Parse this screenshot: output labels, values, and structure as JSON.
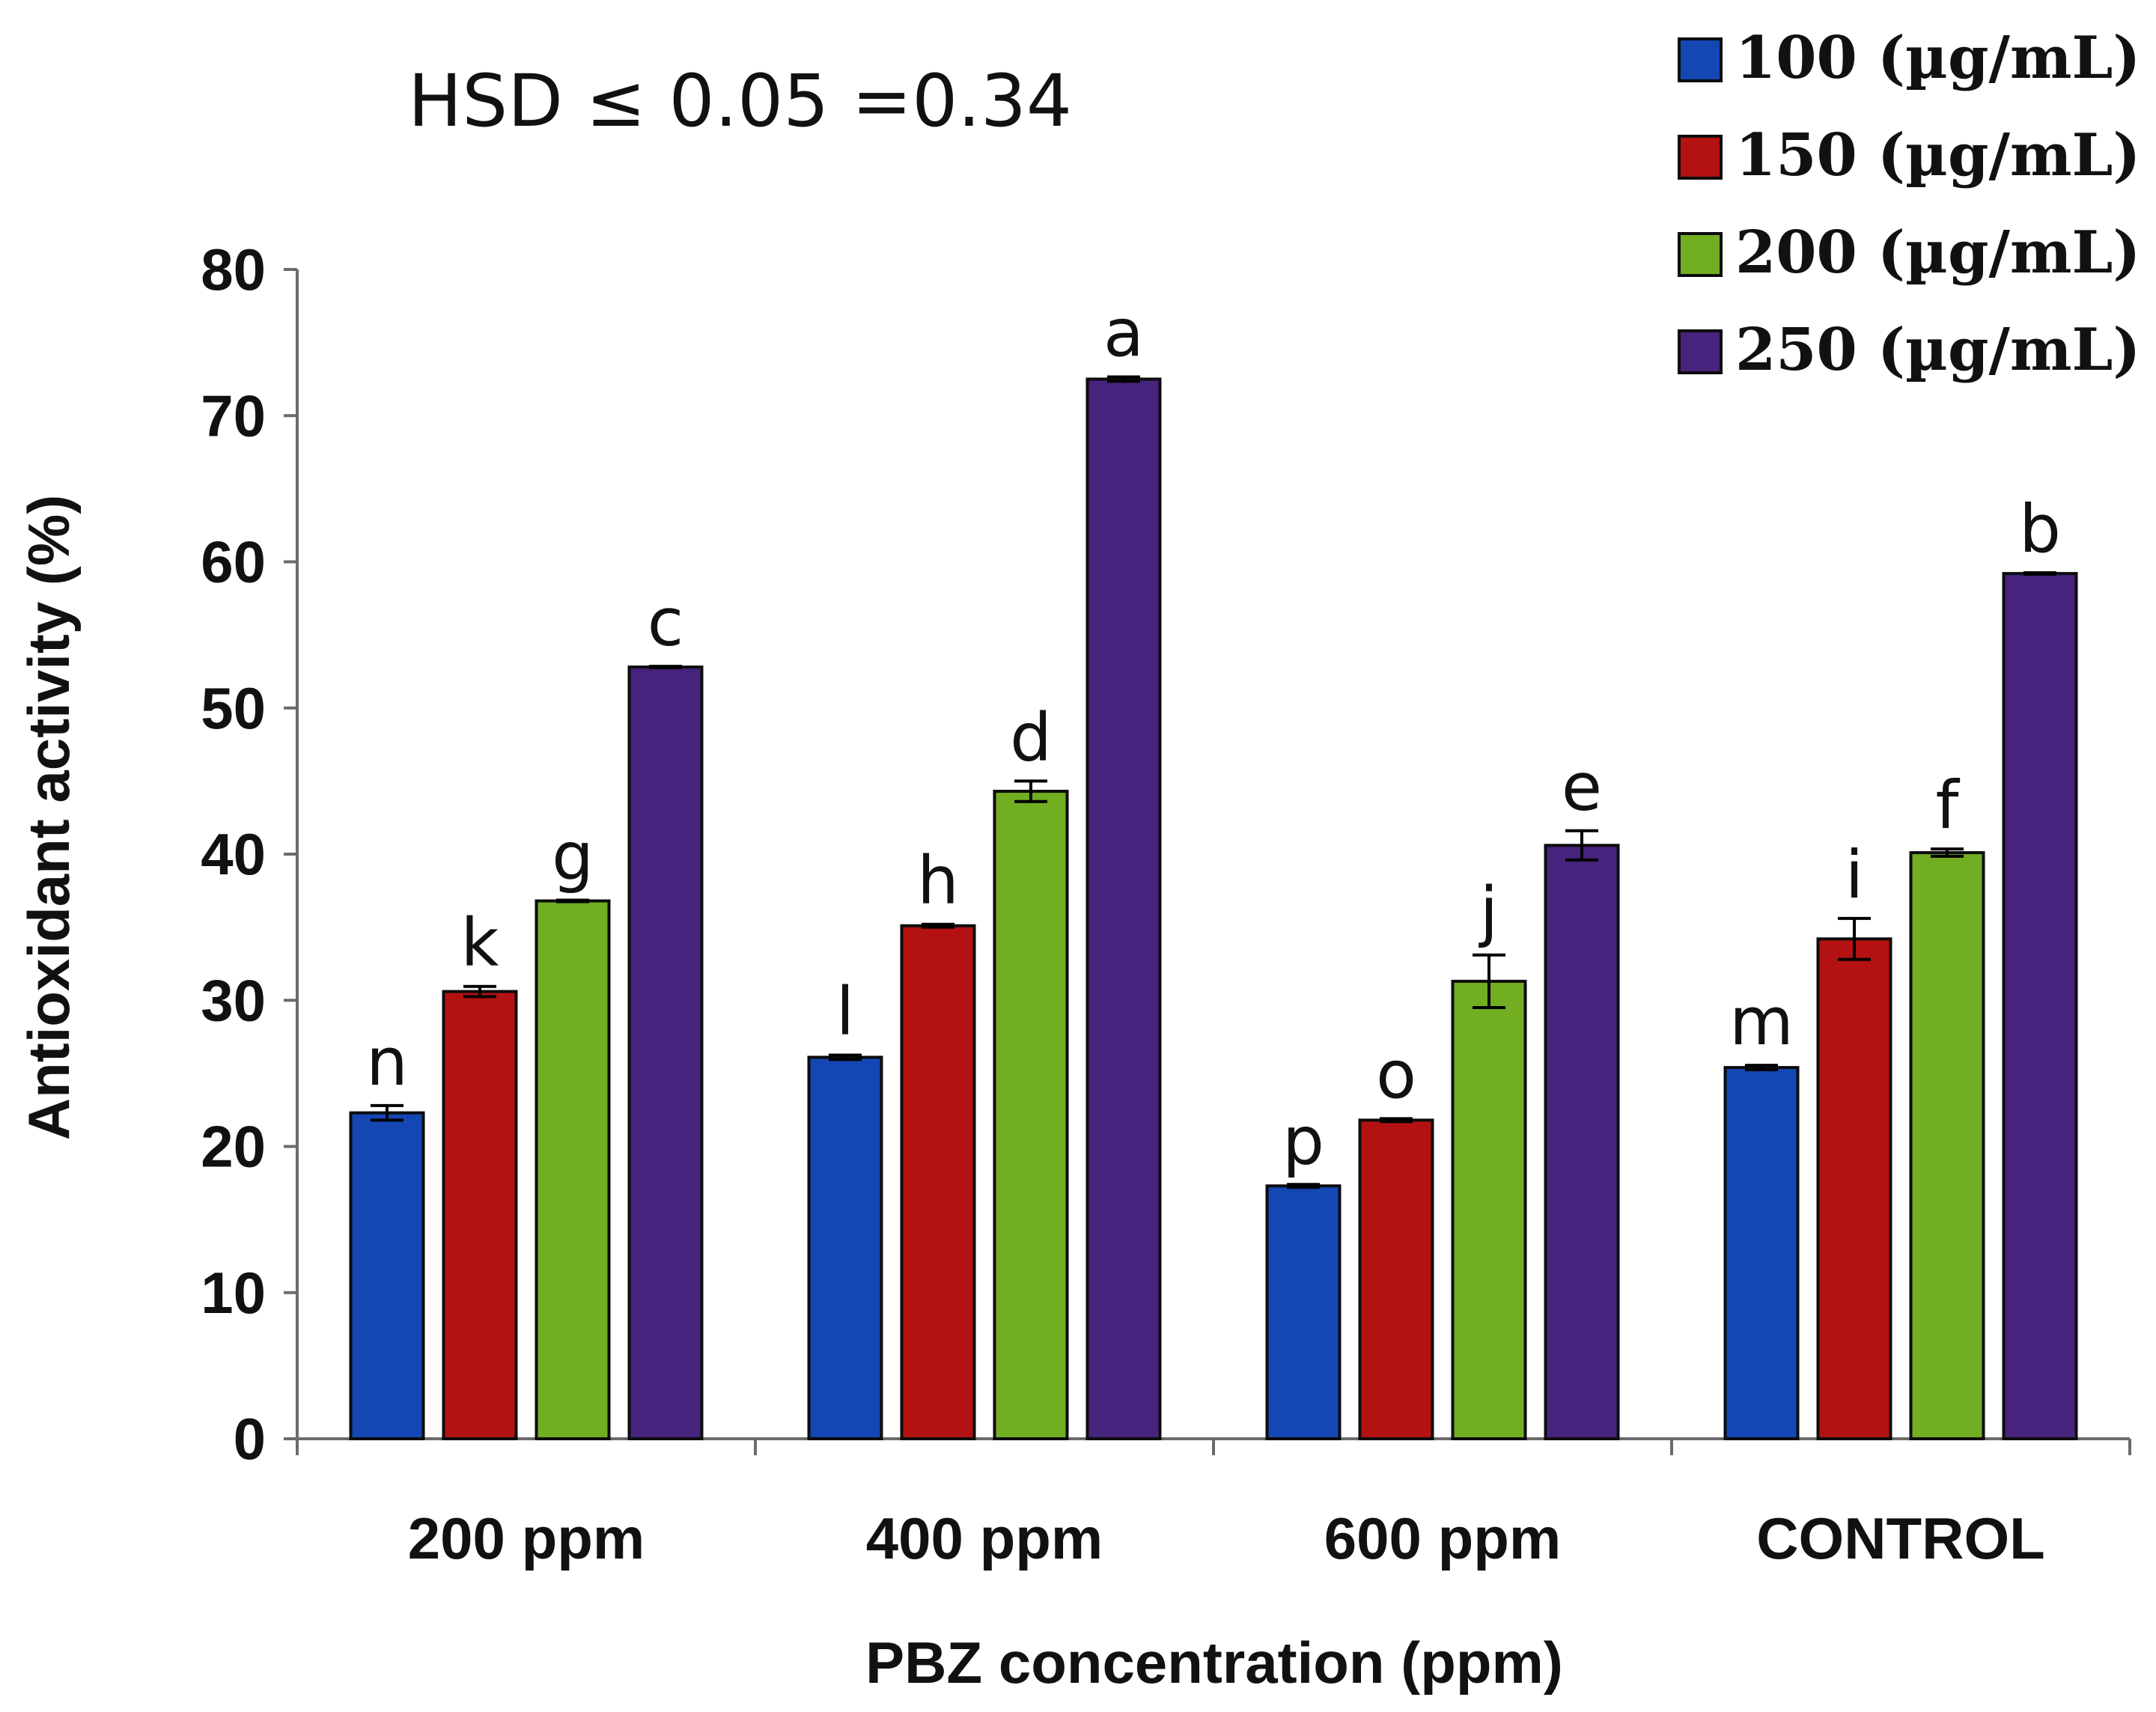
{
  "chart_data": {
    "type": "bar",
    "title": "",
    "annotation": "HSD ≤ 0.05 =0.34",
    "xlabel": "PBZ concentration (ppm)",
    "ylabel": "Antioxidant activity (%)",
    "ylim": [
      0,
      80
    ],
    "yticks": [
      0,
      10,
      20,
      30,
      40,
      50,
      60,
      70,
      80
    ],
    "categories": [
      "200 ppm",
      "400 ppm",
      "600 ppm",
      "CONTROL"
    ],
    "legend_position": "top-right",
    "series": [
      {
        "name": "100 (µg/mL)",
        "color": "#1446B4",
        "values": [
          22.3,
          26.1,
          17.3,
          25.4
        ],
        "errors": [
          0.5,
          0.15,
          0.1,
          0.15
        ],
        "letters": [
          "n",
          "l",
          "p",
          "m"
        ]
      },
      {
        "name": "150 (µg/mL)",
        "color": "#B41212",
        "values": [
          30.6,
          35.1,
          21.8,
          34.2
        ],
        "errors": [
          0.35,
          0.1,
          0.1,
          1.4
        ],
        "letters": [
          "k",
          "h",
          "o",
          "i"
        ]
      },
      {
        "name": "200 (µg/mL)",
        "color": "#72AE22",
        "values": [
          36.8,
          44.3,
          31.3,
          40.1
        ],
        "errors": [
          0.05,
          0.7,
          1.8,
          0.25
        ],
        "letters": [
          "g",
          "d",
          "j",
          "f"
        ]
      },
      {
        "name": "250 (µg/mL)",
        "color": "#46237C",
        "values": [
          52.8,
          72.5,
          40.6,
          59.2
        ],
        "errors": [
          0.05,
          0.15,
          1.0,
          0.05
        ],
        "letters": [
          "c",
          "a",
          "e",
          "b"
        ]
      }
    ]
  }
}
